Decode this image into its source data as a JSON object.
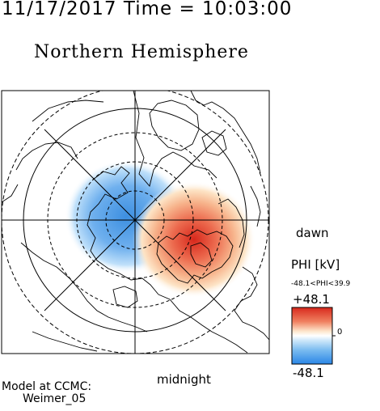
{
  "header": {
    "datetime": "11/17/2017 Time = 10:03:00",
    "title": "Northern Hemisphere"
  },
  "map": {
    "projection": "polar",
    "orientation": {
      "right": "dawn",
      "bottom": "midnight"
    },
    "labels": {
      "dawn": "dawn",
      "midnight": "midnight"
    },
    "grid_circles": [
      "dashed",
      "dashed",
      "solid",
      "dashed"
    ],
    "colors": {
      "negative": "#3d8fe0",
      "positive": "#d7281c",
      "neutral": "#ffffff"
    }
  },
  "colorbar": {
    "title": "PHI [kV]",
    "range_text": "-48.1<PHI<39.9",
    "max_label": "+48.1",
    "min_label": "-48.1",
    "zero_label": "0",
    "min": -48.1,
    "max": 48.1
  },
  "model": {
    "line1": "Model at CCMC:",
    "line2": "Weimer_05"
  }
}
